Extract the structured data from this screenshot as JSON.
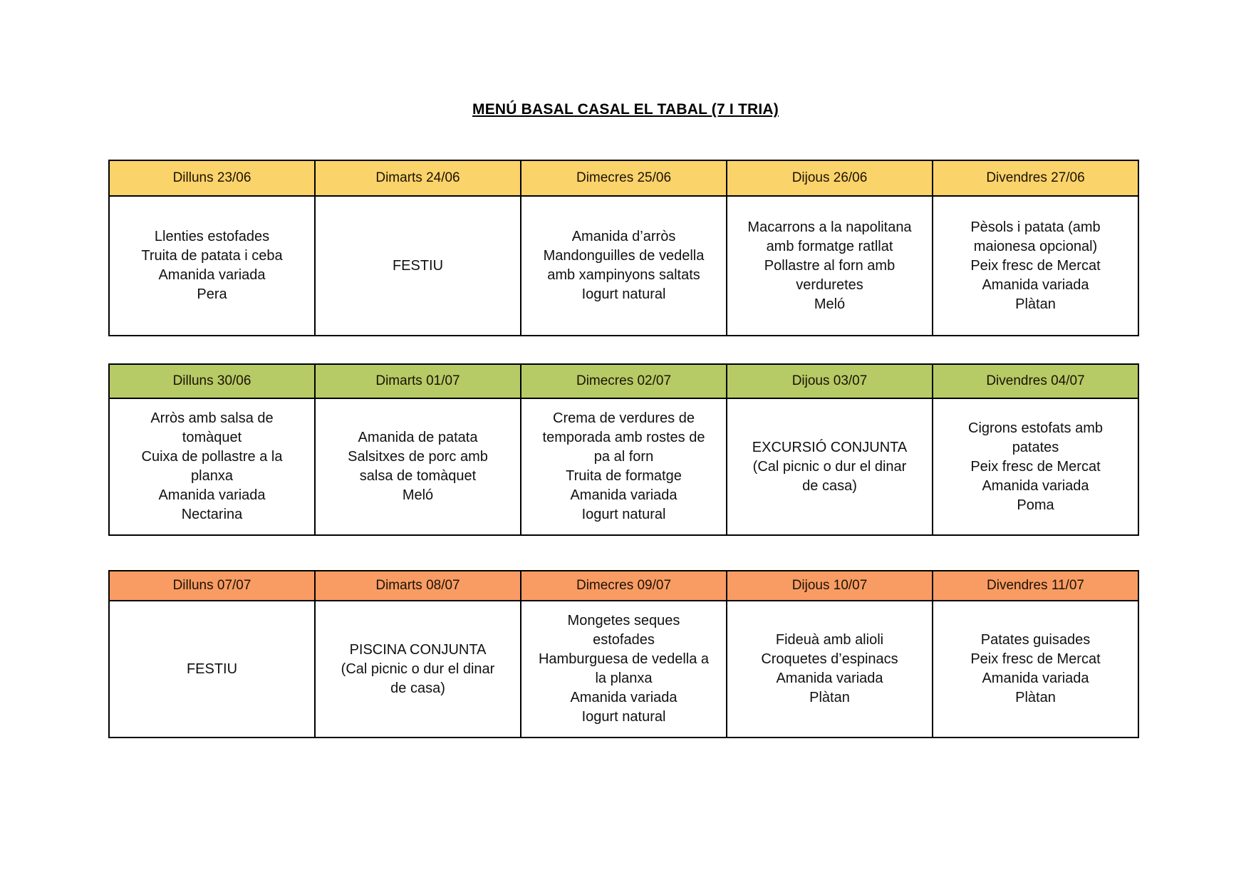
{
  "page": {
    "title": "MENÚ BASAL CASAL EL TABAL (7 I TRIA)"
  },
  "colors": {
    "week1_header": "#FAD36A",
    "week2_header": "#B6CA65",
    "week3_header": "#F89C64",
    "border": "#000000",
    "background": "#FFFFFF"
  },
  "tables": [
    {
      "name": "week-1",
      "header_color": "#FAD36A",
      "days": [
        "Dilluns 23/06",
        "Dimarts 24/06",
        "Dimecres 25/06",
        "Dijous 26/06",
        "Divendres 27/06"
      ],
      "menus": [
        "Llenties estofades\nTruita de patata i ceba\nAmanida variada\nPera",
        "FESTIU",
        "Amanida d’arròs\nMandonguilles de vedella\namb xampinyons saltats\nIogurt natural",
        "Macarrons a la napolitana\namb formatge ratllat\nPollastre al forn amb\nverduretes\nMeló",
        "Pèsols i patata (amb\nmaionesa opcional)\nPeix fresc de Mercat\nAmanida variada\nPlàtan"
      ]
    },
    {
      "name": "week-2",
      "header_color": "#B6CA65",
      "days": [
        "Dilluns 30/06",
        "Dimarts 01/07",
        "Dimecres 02/07",
        "Dijous 03/07",
        "Divendres 04/07"
      ],
      "menus": [
        "Arròs amb salsa de\ntomàquet\nCuixa de pollastre a la\nplanxa\nAmanida variada\nNectarina",
        "Amanida de patata\nSalsitxes de porc amb\nsalsa de tomàquet\nMeló",
        "Crema de verdures de\ntemporada amb rostes de\npa al forn\nTruita de formatge\nAmanida variada\nIogurt natural",
        "EXCURSIÓ CONJUNTA\n(Cal picnic o dur el dinar\nde casa)",
        "Cigrons estofats amb\npatates\nPeix fresc de Mercat\nAmanida variada\nPoma"
      ]
    },
    {
      "name": "week-3",
      "header_color": "#F89C64",
      "days": [
        "Dilluns 07/07",
        "Dimarts 08/07",
        "Dimecres 09/07",
        "Dijous 10/07",
        "Divendres 11/07"
      ],
      "menus": [
        "FESTIU",
        "PISCINA CONJUNTA\n(Cal picnic o dur el dinar\nde casa)",
        "Mongetes seques\nestofades\nHamburguesa de vedella a\nla planxa\nAmanida variada\nIogurt natural",
        "Fideuà amb alioli\nCroquetes d’espinacs\nAmanida variada\nPlàtan",
        "Patates guisades\nPeix fresc de Mercat\nAmanida variada\nPlàtan"
      ]
    }
  ]
}
